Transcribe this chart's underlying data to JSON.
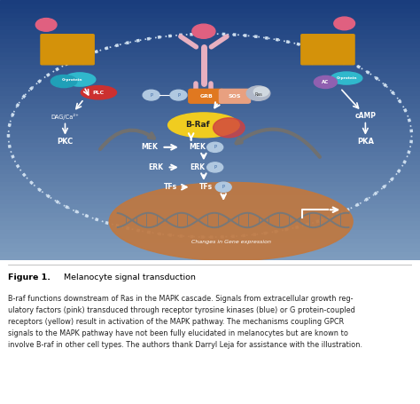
{
  "fig_bg": "#ffffff",
  "diagram_top": "#1a3d7c",
  "diagram_mid": "#4a6fa0",
  "diagram_bot": "#7a9ab8",
  "cell_interior": "#8aafc8",
  "nucleus_color": "#c07840",
  "caption_title": "Figure 1.",
  "caption_subtitle": " Melanocyte signal transduction",
  "caption_body": "B-raf functions downstream of Ras in the MAPK cascade. Signals from extracellular growth reg-\nulatory factors (pink) transduced through receptor tyrosine kinases (blue) or G protein-coupled\nreceptors (yellow) result in activation of the MAPK pathway. The mechanisms coupling GPCR\nsignals to the MAPK pathway have not been fully elucidated in melanocytes but are known to\ninvolve B-raf in other cell types. The authors thank Darryl Leja for assistance with the illustration.",
  "receptor_color": "#e8b0c0",
  "receptor_ball_color": "#e06080",
  "gpcr_color": "#d4920a",
  "gprotein_color": "#2ab0c8",
  "plc_color": "#cc3030",
  "grb_color": "#e07820",
  "sos_color": "#e8a080",
  "ras_color": "#909090",
  "braf_yellow": "#f0cc20",
  "braf_red": "#d04040",
  "p_circle_color": "#b0c8e0",
  "mek_color": "#ffffff",
  "erk_color": "#ffffff",
  "tfs_color": "#ffffff",
  "arrow_white": "#ffffff",
  "arrow_gray": "#707070",
  "ac_color": "#9060b0",
  "text_dark": "#303030",
  "dna_color": "#909090"
}
